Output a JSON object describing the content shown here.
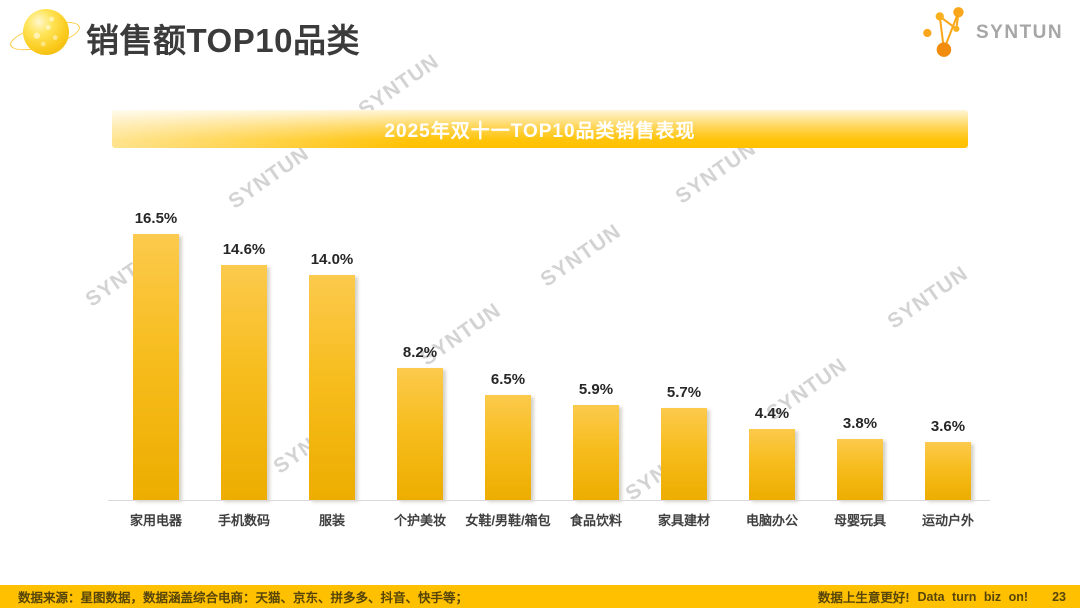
{
  "header": {
    "title": "销售额TOP10品类",
    "logo_text": "SYNTUN",
    "planet_icon": "planet-with-ring-icon",
    "logo_icon": "constellation-network-icon"
  },
  "banner": {
    "title": "2025年双十一TOP10品类销售表现"
  },
  "watermark": {
    "text": "SYNTUN"
  },
  "chart_data": {
    "type": "bar",
    "title": "2025年双十一TOP10品类销售表现",
    "categories": [
      "家用电器",
      "手机数码",
      "服装",
      "个护美妆",
      "女鞋/男鞋/箱包",
      "食品饮料",
      "家具建材",
      "电脑办公",
      "母婴玩具",
      "运动户外"
    ],
    "values": [
      16.5,
      14.6,
      14.0,
      8.2,
      6.5,
      5.9,
      5.7,
      4.4,
      3.8,
      3.6
    ],
    "value_labels": [
      "16.5%",
      "14.6%",
      "14.0%",
      "8.2%",
      "6.5%",
      "5.9%",
      "5.7%",
      "4.4%",
      "3.8%",
      "3.6%"
    ],
    "unit": "%",
    "xlabel": "",
    "ylabel": "",
    "ylim": [
      0,
      18
    ],
    "grid": false,
    "legend": "none",
    "bar_color_top": "#FCCA4D",
    "bar_color_bottom": "#EDAD00"
  },
  "footer": {
    "source": "数据来源：星图数据，数据涵盖综合电商：天猫、京东、拼多多、抖音、快手等；",
    "slogan_cn": "数据上生意更好!",
    "slogan_en": "Data turn biz on!",
    "page_number": "23"
  },
  "colors": {
    "accent_gold": "#FFC000",
    "title_text": "#3B3B3B",
    "value_label_text": "#262626",
    "category_text": "#3F3F3F",
    "logo_gray": "#A6A6A6",
    "watermark_gray": "#969696",
    "axis_line": "#D9D9D9",
    "footer_text": "#574608"
  }
}
